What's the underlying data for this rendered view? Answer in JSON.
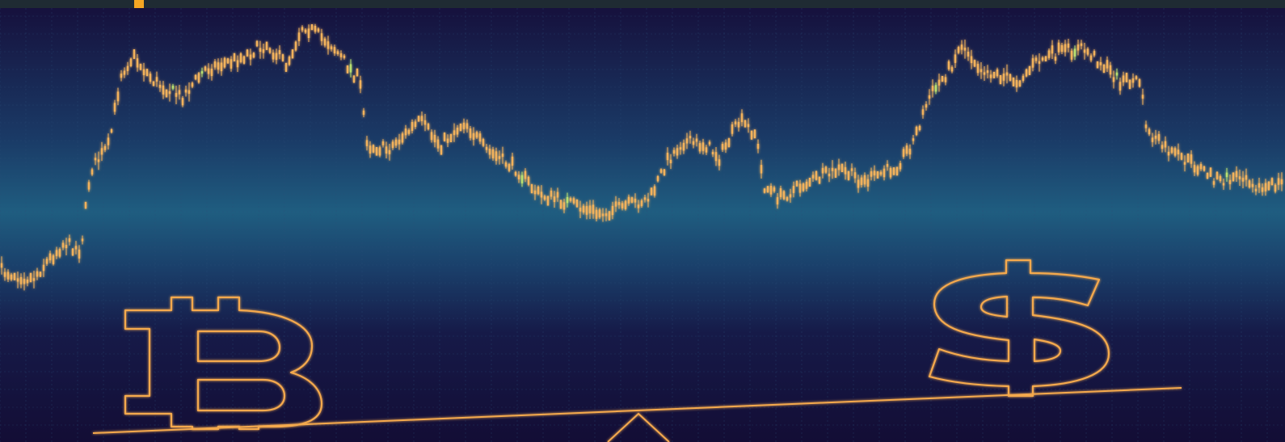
{
  "image": {
    "colors": {
      "background_top": "#16113d",
      "background_band": "#1f5d80",
      "background_bottom": "#130d35",
      "grid": "#2b4f78",
      "candle": "#f2b25c",
      "candle_green": "#b8e070",
      "glyph_outline": "#f4a94e",
      "top_bar": "#1f2b33",
      "top_bar_accent": "#f5a623"
    },
    "symbols": {
      "left": "bitcoin-symbol-icon",
      "right": "dollar-symbol-icon"
    }
  }
}
